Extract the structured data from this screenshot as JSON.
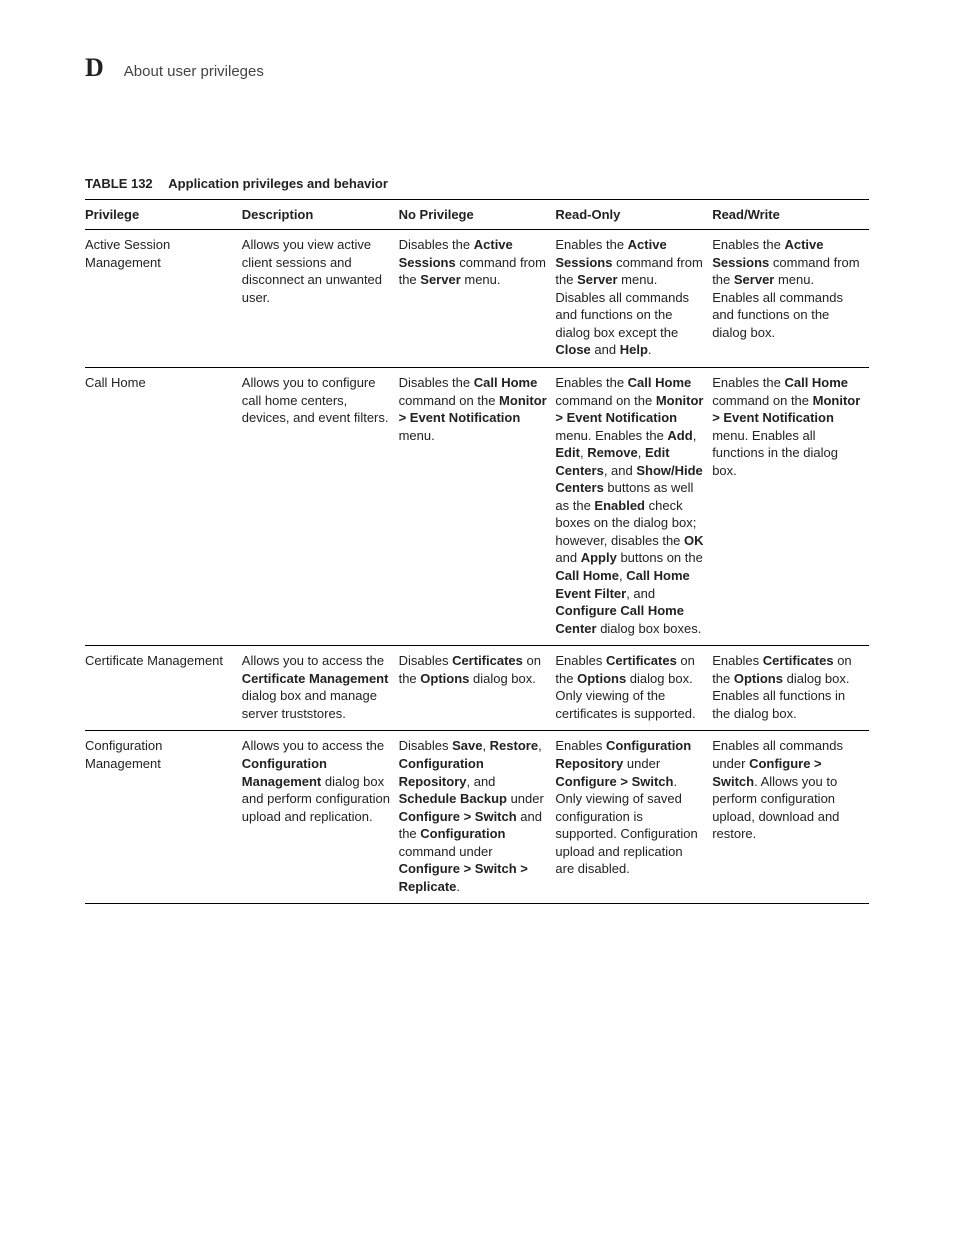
{
  "header": {
    "letter": "D",
    "title": "About user privileges"
  },
  "table": {
    "label": "TABLE 132",
    "title": "Application privileges and behavior",
    "columns": [
      "Privilege",
      "Description",
      "No Privilege",
      "Read-Only",
      "Read/Write"
    ],
    "rows": [
      {
        "privilege": [
          {
            "t": "Active Session Management"
          }
        ],
        "description": [
          {
            "t": "Allows you view active client sessions and disconnect an unwanted user."
          }
        ],
        "noPrivilege": [
          {
            "t": "Disables the "
          },
          {
            "t": "Active Sessions",
            "b": true
          },
          {
            "t": " command from the "
          },
          {
            "t": "Server",
            "b": true
          },
          {
            "t": " menu."
          }
        ],
        "readOnly": [
          {
            "t": "Enables the "
          },
          {
            "t": "Active Sessions",
            "b": true
          },
          {
            "t": " command from the "
          },
          {
            "t": "Server",
            "b": true
          },
          {
            "t": " menu. Disables all commands and functions on the dialog box except the "
          },
          {
            "t": "Close",
            "b": true
          },
          {
            "t": " and "
          },
          {
            "t": "Help",
            "b": true
          },
          {
            "t": "."
          }
        ],
        "readWrite": [
          {
            "t": "Enables the "
          },
          {
            "t": "Active Sessions",
            "b": true
          },
          {
            "t": " command from the "
          },
          {
            "t": "Server",
            "b": true
          },
          {
            "t": " menu. Enables all commands and functions on the dialog box."
          }
        ]
      },
      {
        "privilege": [
          {
            "t": "Call Home"
          }
        ],
        "description": [
          {
            "t": "Allows you to configure call home centers, devices, and event filters."
          }
        ],
        "noPrivilege": [
          {
            "t": "Disables the "
          },
          {
            "t": "Call Home",
            "b": true
          },
          {
            "t": " command on the "
          },
          {
            "t": "Monitor > Event Notification",
            "b": true
          },
          {
            "t": " menu."
          }
        ],
        "readOnly": [
          {
            "t": "Enables the "
          },
          {
            "t": "Call Home",
            "b": true
          },
          {
            "t": " command on the "
          },
          {
            "t": "Monitor > Event Notification",
            "b": true
          },
          {
            "t": " menu. Enables the "
          },
          {
            "t": "Add",
            "b": true
          },
          {
            "t": ", "
          },
          {
            "t": "Edit",
            "b": true
          },
          {
            "t": ", "
          },
          {
            "t": "Remove",
            "b": true
          },
          {
            "t": ", "
          },
          {
            "t": "Edit Centers",
            "b": true
          },
          {
            "t": ", and "
          },
          {
            "t": "Show/Hide Centers",
            "b": true
          },
          {
            "t": " buttons as well as the "
          },
          {
            "t": "Enabled",
            "b": true
          },
          {
            "t": " check boxes on the dialog box; however, disables the "
          },
          {
            "t": "OK",
            "b": true
          },
          {
            "t": " and "
          },
          {
            "t": "Apply",
            "b": true
          },
          {
            "t": " buttons on the "
          },
          {
            "t": "Call Home",
            "b": true
          },
          {
            "t": ", "
          },
          {
            "t": "Call Home Event Filter",
            "b": true
          },
          {
            "t": ", and "
          },
          {
            "t": "Configure Call Home Center",
            "b": true
          },
          {
            "t": " dialog box boxes."
          }
        ],
        "readWrite": [
          {
            "t": "Enables the "
          },
          {
            "t": "Call Home",
            "b": true
          },
          {
            "t": " command on the "
          },
          {
            "t": "Monitor > Event Notification",
            "b": true
          },
          {
            "t": " menu. Enables all functions in the dialog box."
          }
        ]
      },
      {
        "privilege": [
          {
            "t": "Certificate Management"
          }
        ],
        "description": [
          {
            "t": "Allows you to access the "
          },
          {
            "t": "Certificate Management",
            "b": true
          },
          {
            "t": " dialog box and manage server truststores."
          }
        ],
        "noPrivilege": [
          {
            "t": "Disables "
          },
          {
            "t": "Certificates",
            "b": true
          },
          {
            "t": " on the "
          },
          {
            "t": "Options",
            "b": true
          },
          {
            "t": " dialog box."
          }
        ],
        "readOnly": [
          {
            "t": "Enables "
          },
          {
            "t": "Certificates",
            "b": true
          },
          {
            "t": " on the "
          },
          {
            "t": "Options",
            "b": true
          },
          {
            "t": " dialog box. Only viewing of the certificates is supported."
          }
        ],
        "readWrite": [
          {
            "t": "Enables "
          },
          {
            "t": "Certificates",
            "b": true
          },
          {
            "t": " on the "
          },
          {
            "t": "Options",
            "b": true
          },
          {
            "t": " dialog box. Enables all functions in the dialog box."
          }
        ]
      },
      {
        "privilege": [
          {
            "t": "Configuration Management"
          }
        ],
        "description": [
          {
            "t": "Allows you to access the "
          },
          {
            "t": "Configuration Management",
            "b": true
          },
          {
            "t": " dialog box and perform configuration upload and replication."
          }
        ],
        "noPrivilege": [
          {
            "t": "Disables "
          },
          {
            "t": "Save",
            "b": true
          },
          {
            "t": ", "
          },
          {
            "t": "Restore",
            "b": true
          },
          {
            "t": ", "
          },
          {
            "t": "Configuration Repository",
            "b": true
          },
          {
            "t": ", and "
          },
          {
            "t": "Schedule Backup",
            "b": true
          },
          {
            "t": " under "
          },
          {
            "t": "Configure > Switch",
            "b": true
          },
          {
            "t": " and the "
          },
          {
            "t": "Configuration",
            "b": true
          },
          {
            "t": " command under "
          },
          {
            "t": "Configure > Switch > Replicate",
            "b": true
          },
          {
            "t": "."
          }
        ],
        "readOnly": [
          {
            "t": "Enables "
          },
          {
            "t": "Configuration Repository",
            "b": true
          },
          {
            "t": " under "
          },
          {
            "t": "Configure > Switch",
            "b": true
          },
          {
            "t": ". Only viewing of saved configuration is supported. Configuration upload and replication are disabled."
          }
        ],
        "readWrite": [
          {
            "t": "Enables all commands under "
          },
          {
            "t": "Configure > Switch",
            "b": true
          },
          {
            "t": ". Allows you to perform configuration upload, download and restore."
          }
        ]
      }
    ]
  }
}
